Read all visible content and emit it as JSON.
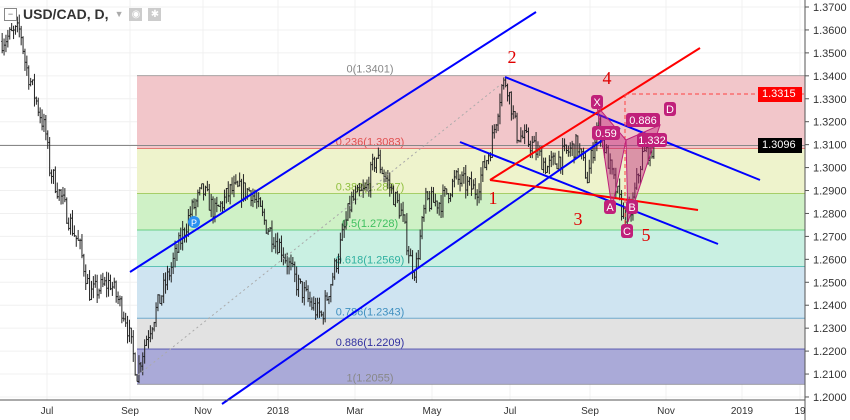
{
  "legend": {
    "symbol": "USD/CAD, D,",
    "collapse_icon": "minus-square-icon",
    "dropdown_icon": "caret-down-icon",
    "eye_icon": "eye-icon",
    "settings_icon": "gear-icon"
  },
  "price_tags": {
    "target": {
      "value": "1.3315",
      "color": "#ff0000"
    },
    "last": {
      "value": "1.3096",
      "color": "#000000"
    }
  },
  "chart_data": {
    "type": "candlestick",
    "title": "USD/CAD, D,",
    "ylim": [
      1.2,
      1.37
    ],
    "y_ticks": [
      "1.3700",
      "1.3600",
      "1.3500",
      "1.3400",
      "1.3300",
      "1.3200",
      "1.3100",
      "1.3000",
      "1.2900",
      "1.2800",
      "1.2700",
      "1.2600",
      "1.2500",
      "1.2400",
      "1.2300",
      "1.2200",
      "1.2100",
      "1.2000"
    ],
    "x_ticks": [
      "Jul",
      "Sep",
      "Nov",
      "2018",
      "Mar",
      "May",
      "Jul",
      "Sep",
      "Nov",
      "2019",
      "19"
    ],
    "grid": true,
    "approx_close_path": [
      [
        "2017-05-25",
        1.355
      ],
      [
        "2017-06-10",
        1.36
      ],
      [
        "2017-06-14",
        1.345
      ],
      [
        "2017-06-30",
        1.315
      ],
      [
        "2017-07-03",
        1.3
      ],
      [
        "2017-07-27",
        1.265
      ],
      [
        "2017-08-04",
        1.245
      ],
      [
        "2017-08-20",
        1.25
      ],
      [
        "2017-09-01",
        1.235
      ],
      [
        "2017-09-10",
        1.21
      ],
      [
        "2017-09-17",
        1.225
      ],
      [
        "2017-10-03",
        1.25
      ],
      [
        "2017-10-22",
        1.28
      ],
      [
        "2017-11-01",
        1.29
      ],
      [
        "2017-11-11",
        1.28
      ],
      [
        "2017-11-23",
        1.29
      ],
      [
        "2017-12-09",
        1.29
      ],
      [
        "2017-12-21",
        1.275
      ],
      [
        "2018-01-02",
        1.265
      ],
      [
        "2018-01-14",
        1.25
      ],
      [
        "2018-01-26",
        1.24
      ],
      [
        "2018-02-03",
        1.235
      ],
      [
        "2018-02-15",
        1.26
      ],
      [
        "2018-02-26",
        1.285
      ],
      [
        "2018-03-10",
        1.29
      ],
      [
        "2018-03-18",
        1.305
      ],
      [
        "2018-03-26",
        1.295
      ],
      [
        "2018-04-07",
        1.28
      ],
      [
        "2018-04-14",
        1.26
      ],
      [
        "2018-04-18",
        1.255
      ],
      [
        "2018-04-26",
        1.285
      ],
      [
        "2018-05-08",
        1.285
      ],
      [
        "2018-05-20",
        1.295
      ],
      [
        "2018-06-05",
        1.29
      ],
      [
        "2018-06-17",
        1.31
      ],
      [
        "2018-06-25",
        1.335
      ],
      [
        "2018-06-29",
        1.338
      ],
      [
        "2018-07-07",
        1.315
      ],
      [
        "2018-07-19",
        1.31
      ],
      [
        "2018-07-31",
        1.3
      ],
      [
        "2018-08-12",
        1.305
      ],
      [
        "2018-08-24",
        1.31
      ],
      [
        "2018-09-01",
        1.295
      ],
      [
        "2018-09-09",
        1.32
      ],
      [
        "2018-09-21",
        1.295
      ],
      [
        "2018-09-29",
        1.28
      ],
      [
        "2018-10-05",
        1.28
      ],
      [
        "2018-10-14",
        1.305
      ],
      [
        "2018-10-24",
        1.31
      ]
    ],
    "fib_levels": [
      {
        "ratio": 0,
        "price": 1.3401,
        "label": "0(1.3401)",
        "color": "#888888",
        "band": "#f2c6ca"
      },
      {
        "ratio": 0.236,
        "price": 1.3083,
        "label": "0.236(1.3083)",
        "color": "#e05050",
        "band": "#eef3cc"
      },
      {
        "ratio": 0.382,
        "price": 1.2887,
        "label": "0.382(1.2887)",
        "color": "#90c040",
        "band": "#cff1c6"
      },
      {
        "ratio": 0.5,
        "price": 1.2728,
        "label": "0.5(1.2728)",
        "color": "#40c060",
        "band": "#c9f0e2"
      },
      {
        "ratio": 0.618,
        "price": 1.2569,
        "label": "0.618(1.2569)",
        "color": "#30b0a0",
        "band": "#cfe4f1"
      },
      {
        "ratio": 0.786,
        "price": 1.2343,
        "label": "0.786(1.2343)",
        "color": "#4090c0",
        "band": "#e2e2e2"
      },
      {
        "ratio": 0.886,
        "price": 1.2209,
        "label": "0.886(1.2209)",
        "color": "#3030a0",
        "band": "#aaaad8"
      },
      {
        "ratio": 1,
        "price": 1.2055,
        "label": "1(1.2055)",
        "color": "#888888",
        "band": null
      }
    ],
    "wave_labels": [
      "1",
      "2",
      "3",
      "4",
      "5"
    ],
    "pattern_labels": {
      "X": "X",
      "A": "A",
      "B": "B",
      "C": "C",
      "D": "D",
      "xab": "0.59",
      "xad": "0.886",
      "bcd": "1.332"
    },
    "pivot_marker": "P",
    "colors": {
      "channel": "#0000ff",
      "wave_lines": "#ff0000",
      "pattern": "#c0207a",
      "candles": "#000000"
    }
  }
}
